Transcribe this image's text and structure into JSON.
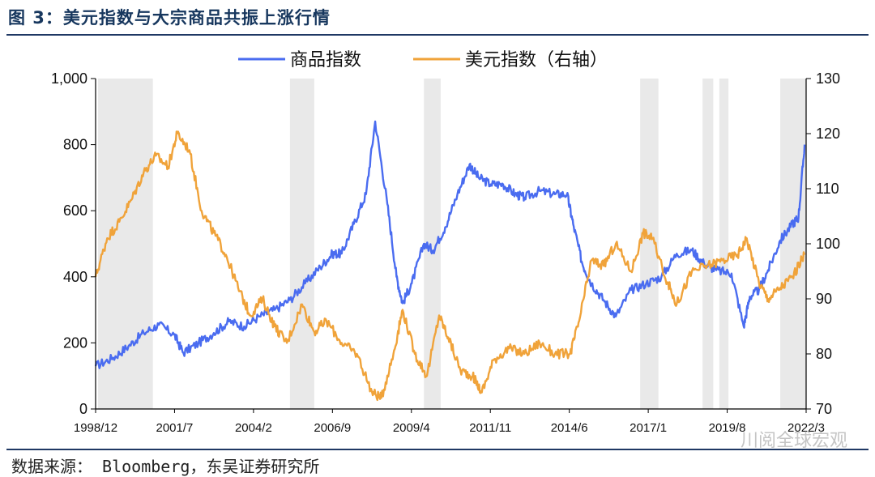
{
  "title": "图 3：美元指数与大宗商品共振上涨行情",
  "source": "数据来源： Bloomberg，东吴证券研究所",
  "watermark": "川阅全球宏观",
  "colors": {
    "commodity": "#4a6cf0",
    "dxy": "#f0a33a",
    "shade": "#e9e9e9",
    "axis": "#000000"
  },
  "chart_data": {
    "type": "line",
    "title": "",
    "x_ticks": [
      "1998/12",
      "2001/7",
      "2004/2",
      "2006/9",
      "2009/4",
      "2011/11",
      "2014/6",
      "2017/1",
      "2019/8",
      "2022/3"
    ],
    "x_range": [
      1998.92,
      2022.25
    ],
    "y_left": {
      "ylim": [
        0,
        1000
      ],
      "ticks": [
        0,
        200,
        400,
        600,
        800,
        1000
      ],
      "tick_labels": [
        "0",
        "200",
        "400",
        "600",
        "800",
        "1,000"
      ]
    },
    "y_right": {
      "ylim": [
        70,
        130
      ],
      "ticks": [
        70,
        80,
        90,
        100,
        110,
        120,
        130
      ],
      "tick_labels": [
        "70",
        "80",
        "90",
        "100",
        "110",
        "120",
        "130"
      ]
    },
    "shaded_periods": [
      [
        1999.0,
        2000.8
      ],
      [
        2005.3,
        2006.1
      ],
      [
        2009.7,
        2010.25
      ],
      [
        2016.8,
        2017.4
      ],
      [
        2018.85,
        2019.2
      ],
      [
        2019.4,
        2019.7
      ],
      [
        2021.4,
        2022.25
      ]
    ],
    "series": [
      {
        "name": "商品指数",
        "axis": "left",
        "x": [
          1998.92,
          1999.5,
          2000.0,
          2000.5,
          2001.0,
          2001.5,
          2001.8,
          2002.3,
          2002.8,
          2003.3,
          2003.8,
          2004.3,
          2004.8,
          2005.3,
          2005.8,
          2006.3,
          2006.7,
          2007.0,
          2007.4,
          2007.8,
          2008.1,
          2008.5,
          2008.8,
          2009.0,
          2009.3,
          2009.7,
          2010.0,
          2010.4,
          2010.8,
          2011.2,
          2011.5,
          2011.9,
          2012.3,
          2012.7,
          2013.0,
          2013.5,
          2014.0,
          2014.4,
          2014.6,
          2014.9,
          2015.2,
          2015.6,
          2016.0,
          2016.5,
          2017.0,
          2017.5,
          2018.0,
          2018.5,
          2018.9,
          2019.3,
          2019.8,
          2020.2,
          2020.4,
          2020.7,
          2021.0,
          2021.4,
          2021.8,
          2022.0,
          2022.2
        ],
        "values": [
          130,
          155,
          190,
          230,
          255,
          225,
          170,
          200,
          230,
          265,
          250,
          280,
          300,
          330,
          380,
          430,
          470,
          470,
          560,
          650,
          870,
          620,
          400,
          320,
          380,
          500,
          480,
          550,
          650,
          740,
          700,
          680,
          680,
          650,
          640,
          660,
          650,
          650,
          560,
          440,
          380,
          330,
          280,
          360,
          380,
          400,
          470,
          480,
          440,
          420,
          410,
          250,
          340,
          360,
          420,
          510,
          560,
          580,
          800
        ]
      },
      {
        "name": "美元指数（右轴）",
        "axis": "right",
        "x": [
          1998.92,
          1999.3,
          1999.7,
          2000.1,
          2000.5,
          2000.9,
          2001.3,
          2001.6,
          2002.0,
          2002.4,
          2002.8,
          2003.2,
          2003.6,
          2004.0,
          2004.4,
          2004.8,
          2005.2,
          2005.7,
          2006.1,
          2006.5,
          2007.0,
          2007.5,
          2008.0,
          2008.3,
          2008.7,
          2009.0,
          2009.4,
          2009.8,
          2010.2,
          2010.5,
          2010.9,
          2011.3,
          2011.6,
          2012.0,
          2012.5,
          2013.0,
          2013.5,
          2014.0,
          2014.5,
          2014.8,
          2015.2,
          2015.6,
          2016.0,
          2016.5,
          2016.9,
          2017.2,
          2017.7,
          2018.0,
          2018.5,
          2019.0,
          2019.5,
          2020.0,
          2020.3,
          2020.7,
          2021.0,
          2021.4,
          2021.8,
          2022.2
        ],
        "values": [
          94,
          101,
          104,
          108,
          113,
          116,
          114,
          120,
          117,
          106,
          102,
          98,
          92,
          87,
          90,
          85,
          82,
          89,
          84,
          86,
          82,
          80,
          73,
          72,
          80,
          88,
          80,
          76,
          87,
          83,
          77,
          76,
          73,
          79,
          81,
          80,
          82,
          80,
          80,
          86,
          97,
          96,
          100,
          95,
          102,
          101,
          93,
          89,
          95,
          96,
          97,
          98,
          101,
          93,
          90,
          92,
          94,
          98
        ]
      }
    ]
  }
}
